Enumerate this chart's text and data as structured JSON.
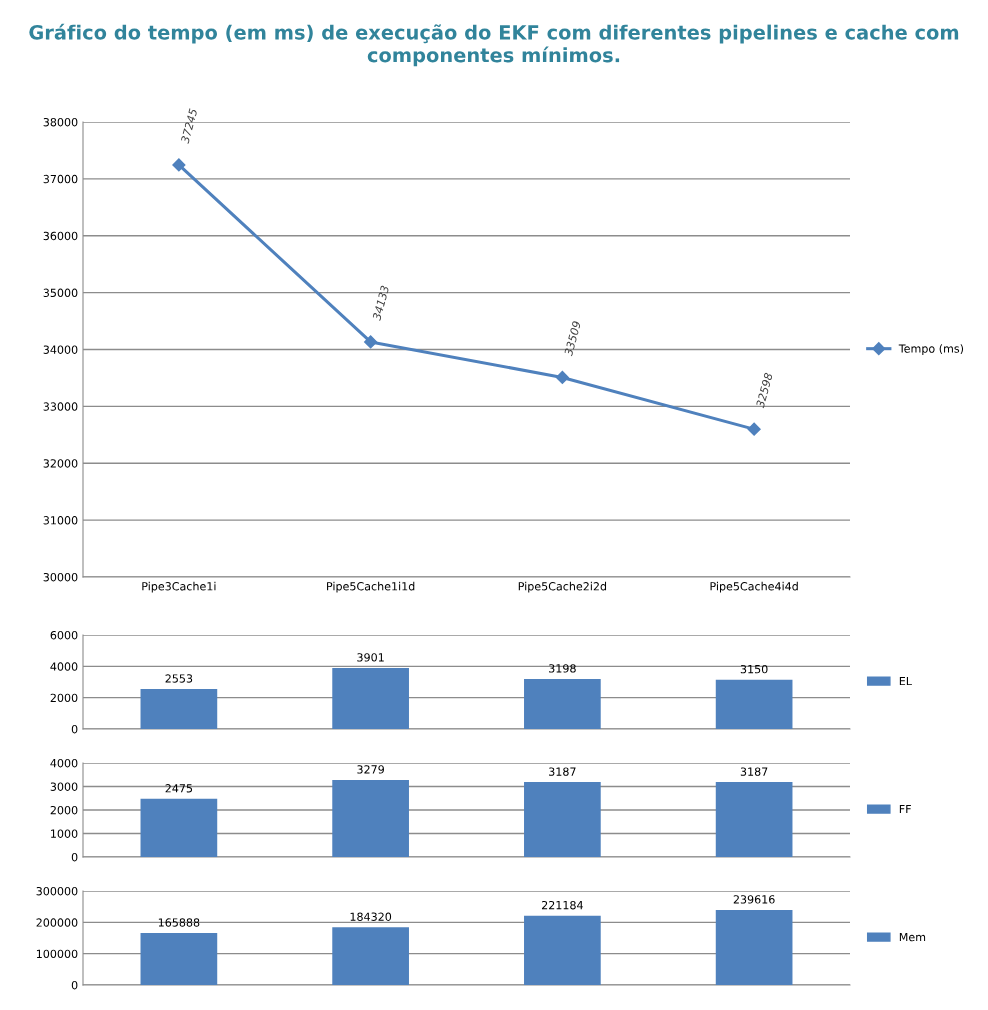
{
  "chart_data": [
    {
      "type": "line",
      "title": "Gráfico do tempo (em ms) de execução do EKF com diferentes pipelines e cache com componentes mínimos.",
      "categories": [
        "Pipe3Cache1i",
        "Pipe5Cache1i1d",
        "Pipe5Cache2i2d",
        "Pipe5Cache4i4d"
      ],
      "series": [
        {
          "name": "Tempo (ms)",
          "color": "#4f81bd",
          "values": [
            37245,
            34133,
            33509,
            32598
          ]
        }
      ],
      "ylim": [
        30000,
        38000
      ],
      "yticks": [
        30000,
        31000,
        32000,
        33000,
        34000,
        35000,
        36000,
        37000,
        38000
      ],
      "grid": "y",
      "legend": "right",
      "marker": "diamond",
      "line_style": "solid",
      "data_labels": true
    },
    {
      "type": "bar",
      "categories": [
        null,
        null,
        null,
        null
      ],
      "series": [
        {
          "name": "EL",
          "color": "#4f81bd",
          "values": [
            2553,
            3901,
            3198,
            3150
          ]
        }
      ],
      "ylim": [
        0,
        6000
      ],
      "yticks": [
        0,
        2000,
        4000,
        6000
      ],
      "grid": "y",
      "legend": "right",
      "tick_labels": "y",
      "data_labels": true
    },
    {
      "type": "bar",
      "categories": [
        null,
        null,
        null,
        null
      ],
      "series": [
        {
          "name": "FF",
          "color": "#4f81bd",
          "values": [
            2475,
            3279,
            3187,
            3187
          ]
        }
      ],
      "ylim": [
        0,
        4000
      ],
      "yticks": [
        0,
        1000,
        2000,
        3000,
        4000
      ],
      "grid": "y",
      "legend": "right",
      "tick_labels": "y",
      "data_labels": true
    },
    {
      "type": "bar",
      "categories": [
        null,
        null,
        null,
        null
      ],
      "series": [
        {
          "name": "Mem",
          "color": "#4f81bd",
          "values": [
            165888,
            184320,
            221184,
            239616
          ]
        }
      ],
      "ylim": [
        0,
        300000
      ],
      "yticks": [
        0,
        100000,
        200000,
        300000
      ],
      "grid": "y",
      "legend": "right",
      "tick_labels": "y",
      "data_labels": true
    }
  ]
}
